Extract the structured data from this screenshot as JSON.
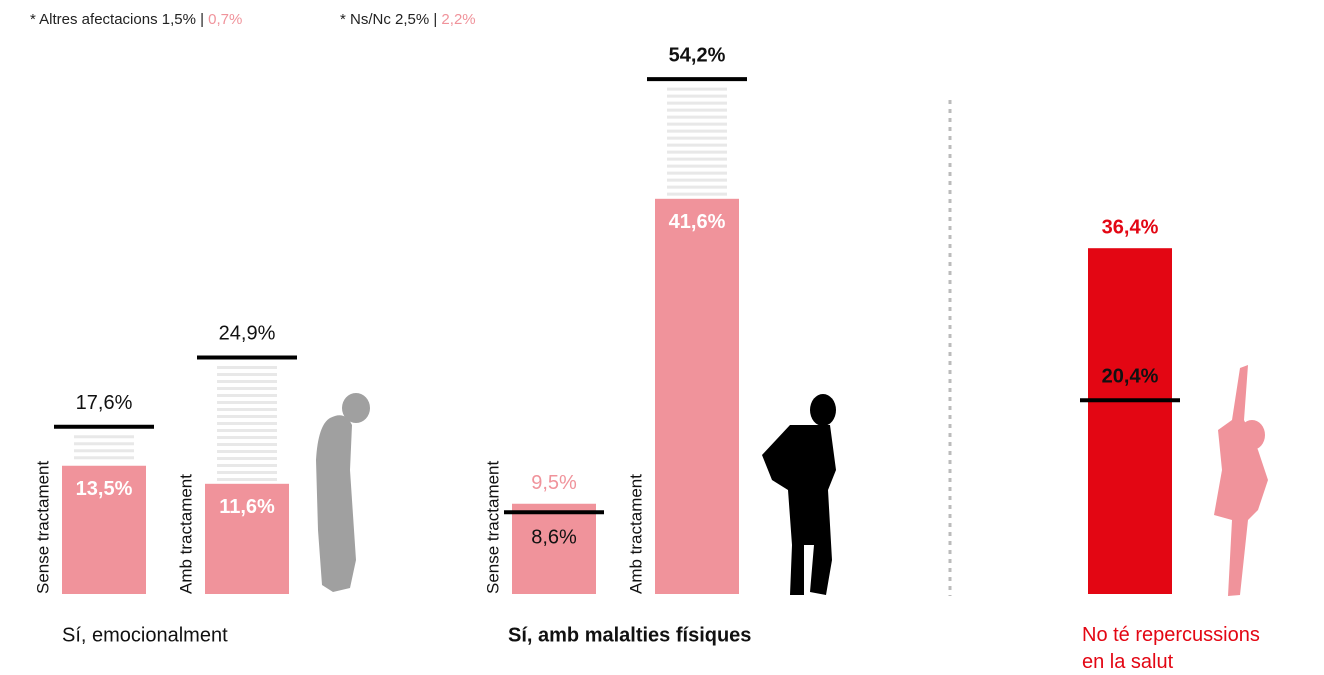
{
  "chart_data": {
    "type": "bar",
    "notes": [
      {
        "text": "* Altres afectacions 1,5% |",
        "highlight": "0,7%"
      },
      {
        "text": "* Ns/Nc 2,5% |",
        "highlight": "2,2%"
      }
    ],
    "groups": [
      {
        "name": "Sí, emocionalment",
        "color": "#f0939b",
        "bars": [
          {
            "label": "Sense tractament",
            "value": 13.5,
            "value_label": "13,5%",
            "line": 17.6,
            "line_label": "17,6%"
          },
          {
            "label": "Amb tractament",
            "value": 11.6,
            "value_label": "11,6%",
            "line": 24.9,
            "line_label": "24,9%"
          }
        ]
      },
      {
        "name": "Sí, amb malalties físiques",
        "color": "#f0939b",
        "bars": [
          {
            "label": "Sense tractament",
            "value": 9.5,
            "value_label": "9,5%",
            "line": 8.6,
            "line_label": "8,6%"
          },
          {
            "label": "Amb tractament",
            "value": 41.6,
            "value_label": "41,6%",
            "line": 54.2,
            "line_label": "54,2%"
          }
        ]
      },
      {
        "name": "No té repercussions en la salut",
        "color": "#e30613",
        "bars": [
          {
            "value": 36.4,
            "value_label": "36,4%",
            "line": 20.4,
            "line_label": "20,4%"
          }
        ]
      }
    ]
  }
}
